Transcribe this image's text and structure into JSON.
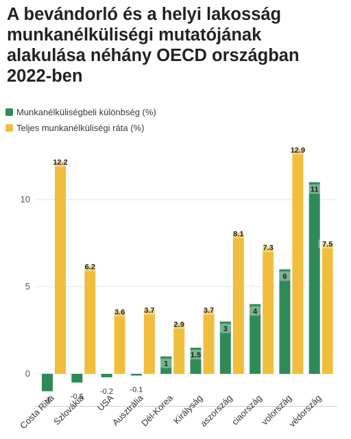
{
  "title": "A bevándorló és a helyi lakosság munkanélküliségi mutatójának alakulása néhány OECD országban 2022-ben",
  "colors": {
    "series1": "#2e8b57",
    "series2": "#f0be3c",
    "grid": "#e4e4e4",
    "axis": "#555555"
  },
  "chart_data": {
    "type": "bar",
    "title": "A bevándorló és a helyi lakosság munkanélküliségi mutatójának alakulása néhány OECD országban 2022-ben",
    "categories": [
      "Costa Rica",
      "Szlovákia",
      "USA",
      "Ausztrália",
      "Dél-Korea",
      "Királyság",
      "aszország",
      "ciaország",
      "volország",
      "védország"
    ],
    "series": [
      {
        "name": "Munkanélküliségbeli különbség (%)",
        "values": [
          -1,
          -0.5,
          -0.2,
          -0.1,
          1,
          1.5,
          3,
          4,
          6,
          11
        ],
        "labels": [
          "-1",
          "-0.5",
          "-0.2",
          "-0.1",
          "1",
          "1.5",
          "3",
          "4",
          "6",
          "11"
        ]
      },
      {
        "name": "Teljes munkanélküliségi ráta (%)",
        "values": [
          12.2,
          6.2,
          3.6,
          3.7,
          2.9,
          3.7,
          8.1,
          7.3,
          12.9,
          7.5
        ],
        "labels": [
          "12.2",
          "6.2",
          "3.6",
          "3.7",
          "2.9",
          "3.7",
          "8.1",
          "7.3",
          "12.9",
          "7.5"
        ]
      }
    ],
    "yticks": [
      "0",
      "5",
      "10"
    ],
    "ytick_values": [
      0,
      5,
      10
    ],
    "ylim": [
      -1,
      13
    ],
    "grid": true,
    "legend": "top-left"
  }
}
